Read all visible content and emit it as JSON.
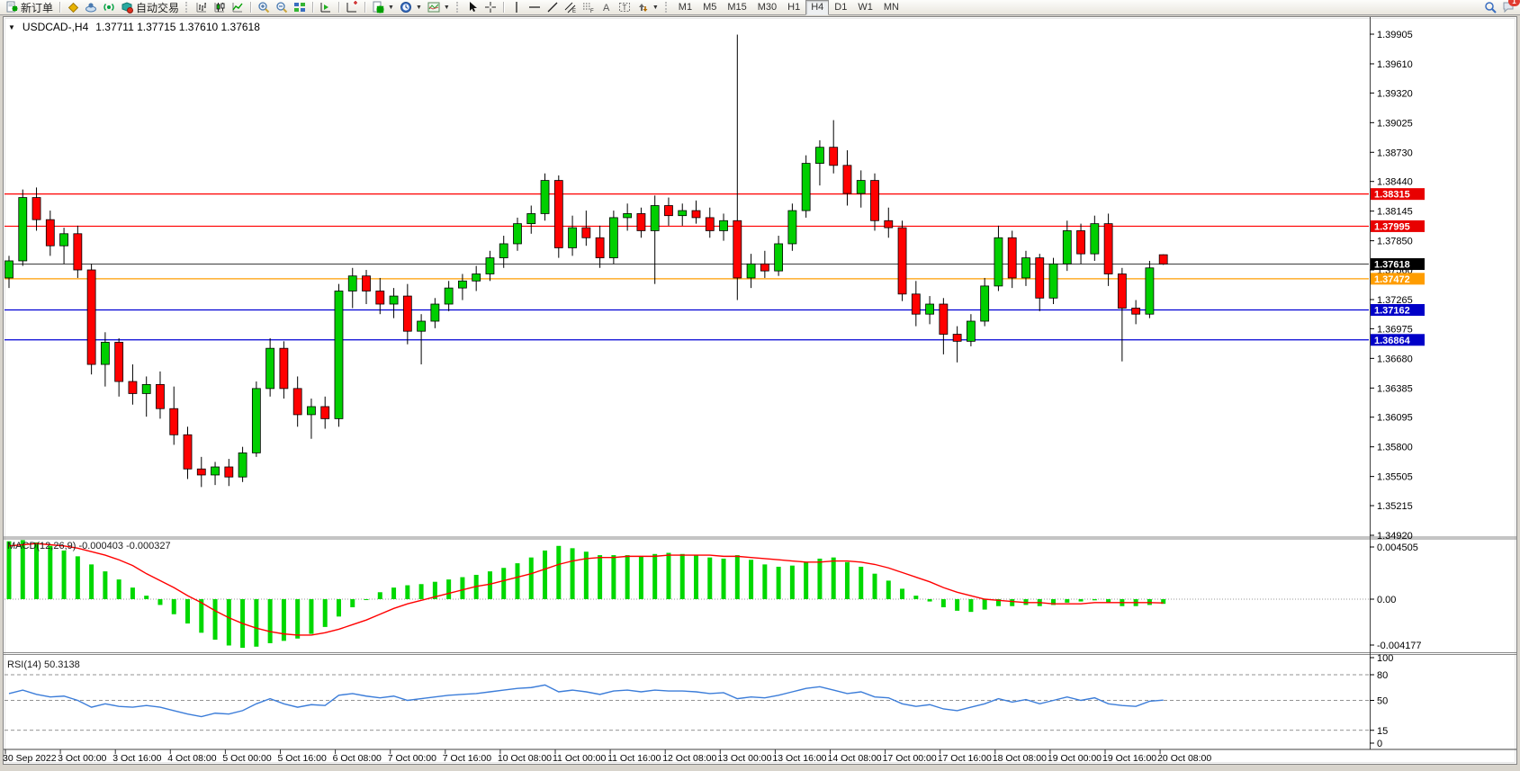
{
  "toolbar": {
    "new_order_label": "新订单",
    "autotrade_label": "自动交易",
    "timeframes": [
      "M1",
      "M5",
      "M15",
      "M30",
      "H1",
      "H4",
      "D1",
      "W1",
      "MN"
    ],
    "active_timeframe": "H4",
    "badge_count": "1",
    "icons": [
      "new-order-icon",
      "diamond-icon",
      "cloud-icon",
      "signal-icon",
      "autotrade-icon",
      "bars-chart-icon",
      "candlestick-chart-icon",
      "line-chart-icon",
      "zoom-in-icon",
      "zoom-out-icon",
      "tile-windows-icon",
      "tester-icon",
      "new-chart-icon",
      "indicators-icon",
      "clock-icon",
      "template-icon",
      "cursor-icon",
      "crosshair-icon",
      "vline-icon",
      "hline-icon",
      "trendline-icon",
      "channel-icon",
      "fibonacci-icon",
      "text-icon",
      "label-icon",
      "arrows-icon",
      "search-icon",
      "chat-icon"
    ]
  },
  "chart": {
    "title": "USDCAD-,H4",
    "quote": "1.37711 1.37715 1.37610 1.37618"
  },
  "chart_data": {
    "type": "candlestick",
    "symbol": "USDCAD",
    "timeframe": "H4",
    "price_axis": {
      "max": 1.39905,
      "min": 1.3492,
      "ticks": [
        "1.39905",
        "1.39610",
        "1.39320",
        "1.39025",
        "1.38730",
        "1.38440",
        "1.38145",
        "1.37850",
        "1.37560",
        "1.37265",
        "1.36975",
        "1.36680",
        "1.36385",
        "1.36095",
        "1.35800",
        "1.35505",
        "1.35215",
        "1.34920"
      ]
    },
    "hlines": [
      {
        "label": "1.38315",
        "price": 1.38315,
        "color": "red"
      },
      {
        "label": "1.37995",
        "price": 1.37995,
        "color": "red"
      },
      {
        "label": "1.37618",
        "price": 1.37618,
        "color": "black"
      },
      {
        "label": "1.37472",
        "price": 1.37472,
        "color": "orange"
      },
      {
        "label": "1.37162",
        "price": 1.37162,
        "color": "blue"
      },
      {
        "label": "1.36864",
        "price": 1.36864,
        "color": "blue"
      }
    ],
    "x_labels": [
      "30 Sep 2022",
      "3 Oct 00:00",
      "3 Oct 16:00",
      "4 Oct 08:00",
      "5 Oct 00:00",
      "5 Oct 16:00",
      "6 Oct 08:00",
      "7 Oct 00:00",
      "7 Oct 16:00",
      "10 Oct 08:00",
      "11 Oct 00:00",
      "11 Oct 16:00",
      "12 Oct 08:00",
      "13 Oct 00:00",
      "13 Oct 16:00",
      "14 Oct 08:00",
      "17 Oct 00:00",
      "17 Oct 16:00",
      "18 Oct 08:00",
      "19 Oct 00:00",
      "19 Oct 16:00",
      "20 Oct 08:00"
    ],
    "candles": [
      [
        1.3748,
        1.377,
        1.3738,
        1.3765
      ],
      [
        1.3765,
        1.3836,
        1.376,
        1.3828
      ],
      [
        1.3828,
        1.3838,
        1.3795,
        1.3806
      ],
      [
        1.3806,
        1.3815,
        1.377,
        1.378
      ],
      [
        1.378,
        1.3798,
        1.3762,
        1.3792
      ],
      [
        1.3792,
        1.38,
        1.3748,
        1.3756
      ],
      [
        1.3756,
        1.3762,
        1.3652,
        1.3662
      ],
      [
        1.3662,
        1.3694,
        1.364,
        1.3684
      ],
      [
        1.3684,
        1.3688,
        1.363,
        1.3645
      ],
      [
        1.3645,
        1.3662,
        1.3622,
        1.3633
      ],
      [
        1.3633,
        1.365,
        1.361,
        1.3642
      ],
      [
        1.3642,
        1.3655,
        1.3608,
        1.3618
      ],
      [
        1.3618,
        1.364,
        1.3582,
        1.3592
      ],
      [
        1.3592,
        1.36,
        1.3548,
        1.3558
      ],
      [
        1.3558,
        1.357,
        1.354,
        1.3552
      ],
      [
        1.3552,
        1.3565,
        1.3542,
        1.356
      ],
      [
        1.356,
        1.3568,
        1.3541,
        1.355
      ],
      [
        1.355,
        1.358,
        1.3545,
        1.3574
      ],
      [
        1.3574,
        1.3645,
        1.357,
        1.3638
      ],
      [
        1.3638,
        1.3688,
        1.363,
        1.3678
      ],
      [
        1.3678,
        1.3685,
        1.3628,
        1.3638
      ],
      [
        1.3638,
        1.365,
        1.36,
        1.3612
      ],
      [
        1.3612,
        1.3628,
        1.3588,
        1.362
      ],
      [
        1.362,
        1.363,
        1.3598,
        1.3608
      ],
      [
        1.3608,
        1.3742,
        1.36,
        1.3735
      ],
      [
        1.3735,
        1.3758,
        1.3718,
        1.375
      ],
      [
        1.375,
        1.3756,
        1.3722,
        1.3735
      ],
      [
        1.3735,
        1.3748,
        1.3712,
        1.3722
      ],
      [
        1.3722,
        1.3738,
        1.3708,
        1.373
      ],
      [
        1.373,
        1.3742,
        1.3682,
        1.3695
      ],
      [
        1.3695,
        1.3712,
        1.3662,
        1.3705
      ],
      [
        1.3705,
        1.3728,
        1.3698,
        1.3722
      ],
      [
        1.3722,
        1.3745,
        1.3715,
        1.3738
      ],
      [
        1.3738,
        1.3752,
        1.3726,
        1.3745
      ],
      [
        1.3745,
        1.376,
        1.3735,
        1.3752
      ],
      [
        1.3752,
        1.3775,
        1.3745,
        1.3768
      ],
      [
        1.3768,
        1.379,
        1.3758,
        1.3782
      ],
      [
        1.3782,
        1.3808,
        1.3775,
        1.3802
      ],
      [
        1.3802,
        1.382,
        1.3792,
        1.3812
      ],
      [
        1.3812,
        1.3852,
        1.3805,
        1.3845
      ],
      [
        1.3845,
        1.385,
        1.3768,
        1.3778
      ],
      [
        1.3778,
        1.381,
        1.377,
        1.3798
      ],
      [
        1.3798,
        1.3815,
        1.378,
        1.3788
      ],
      [
        1.3788,
        1.38,
        1.3758,
        1.3768
      ],
      [
        1.3768,
        1.3815,
        1.3762,
        1.3808
      ],
      [
        1.3808,
        1.3822,
        1.3795,
        1.3812
      ],
      [
        1.3812,
        1.3818,
        1.3788,
        1.3795
      ],
      [
        1.3795,
        1.383,
        1.3742,
        1.382
      ],
      [
        1.382,
        1.3828,
        1.38,
        1.381
      ],
      [
        1.381,
        1.3822,
        1.38,
        1.3815
      ],
      [
        1.3815,
        1.3825,
        1.3802,
        1.3808
      ],
      [
        1.3808,
        1.3818,
        1.3788,
        1.3795
      ],
      [
        1.3795,
        1.3812,
        1.3785,
        1.3805
      ],
      [
        1.3805,
        1.399,
        1.3726,
        1.3748
      ],
      [
        1.3748,
        1.3772,
        1.3738,
        1.3762
      ],
      [
        1.3762,
        1.3775,
        1.3748,
        1.3755
      ],
      [
        1.3755,
        1.379,
        1.375,
        1.3782
      ],
      [
        1.3782,
        1.3822,
        1.3775,
        1.3815
      ],
      [
        1.3815,
        1.387,
        1.3808,
        1.3862
      ],
      [
        1.3862,
        1.3885,
        1.384,
        1.3878
      ],
      [
        1.3878,
        1.3905,
        1.3852,
        1.386
      ],
      [
        1.386,
        1.3875,
        1.382,
        1.3832
      ],
      [
        1.3832,
        1.3855,
        1.3818,
        1.3845
      ],
      [
        1.3845,
        1.3852,
        1.3795,
        1.3805
      ],
      [
        1.3805,
        1.3818,
        1.3788,
        1.3798
      ],
      [
        1.3798,
        1.3805,
        1.3725,
        1.3732
      ],
      [
        1.3732,
        1.3745,
        1.37,
        1.3712
      ],
      [
        1.3712,
        1.373,
        1.3702,
        1.3722
      ],
      [
        1.3722,
        1.3728,
        1.3672,
        1.3692
      ],
      [
        1.3692,
        1.37,
        1.3664,
        1.3685
      ],
      [
        1.3685,
        1.3712,
        1.368,
        1.3705
      ],
      [
        1.3705,
        1.3748,
        1.37,
        1.374
      ],
      [
        1.374,
        1.38,
        1.3735,
        1.3788
      ],
      [
        1.3788,
        1.3795,
        1.3738,
        1.3748
      ],
      [
        1.3748,
        1.3775,
        1.374,
        1.3768
      ],
      [
        1.3768,
        1.3772,
        1.3715,
        1.3728
      ],
      [
        1.3728,
        1.3768,
        1.3722,
        1.3762
      ],
      [
        1.3762,
        1.3805,
        1.3755,
        1.3795
      ],
      [
        1.3795,
        1.3802,
        1.3762,
        1.3772
      ],
      [
        1.3772,
        1.381,
        1.3765,
        1.3802
      ],
      [
        1.3802,
        1.3812,
        1.374,
        1.3752
      ],
      [
        1.3752,
        1.3758,
        1.3665,
        1.3718
      ],
      [
        1.3718,
        1.3726,
        1.3702,
        1.3712
      ],
      [
        1.3712,
        1.3765,
        1.3708,
        1.3758
      ],
      [
        1.37711,
        1.37715,
        1.3761,
        1.37618
      ]
    ],
    "macd": {
      "label": "MACD(12,26,9) -0.000403 -0.000327",
      "value_main": -0.000403,
      "value_signal": -0.000327,
      "scale": 0.0001,
      "axis_ticks": [
        "0.004505",
        "0.00",
        "-0.004177"
      ],
      "main": [
        50,
        51,
        49,
        46,
        42,
        37,
        30,
        24,
        17,
        10,
        3,
        -5,
        -13,
        -21,
        -29,
        -35,
        -40,
        -42,
        -41,
        -38,
        -36,
        -34,
        -30,
        -24,
        -15,
        -7,
        0,
        6,
        10,
        12,
        13,
        15,
        17,
        19,
        21,
        24,
        27,
        31,
        36,
        42,
        46,
        44,
        41,
        38,
        38,
        38,
        37,
        39,
        40,
        39,
        38,
        36,
        35,
        38,
        34,
        30,
        28,
        29,
        32,
        35,
        36,
        32,
        28,
        22,
        16,
        9,
        3,
        -2,
        -7,
        -10,
        -11,
        -9,
        -6,
        -6,
        -5,
        -6,
        -5,
        -3,
        -2,
        -1,
        -3,
        -6,
        -6,
        -5,
        -4.03
      ],
      "signal": [
        46,
        47,
        48,
        47,
        46,
        44,
        41,
        38,
        34,
        29,
        22,
        16,
        10,
        3,
        -3,
        -10,
        -16,
        -21,
        -25,
        -28,
        -30,
        -31,
        -31,
        -29,
        -26,
        -22,
        -18,
        -13,
        -8,
        -4,
        -1,
        2,
        5,
        8,
        11,
        13,
        16,
        19,
        22,
        26,
        30,
        33,
        35,
        36,
        36,
        37,
        37,
        37,
        38,
        38,
        38,
        38,
        37,
        37,
        36,
        35,
        34,
        33,
        32,
        32,
        33,
        33,
        32,
        30,
        27,
        23,
        19,
        15,
        10,
        6,
        3,
        0,
        -1,
        -2,
        -3,
        -3,
        -4,
        -4,
        -4,
        -3,
        -3,
        -3,
        -3,
        -3,
        -3.27
      ]
    },
    "rsi": {
      "label": "RSI(14) 50.3138",
      "value": 50.3138,
      "levels": [
        80,
        50,
        15
      ],
      "axis_ticks": [
        "100",
        "80",
        "50",
        "15",
        "0"
      ],
      "values": [
        58,
        62,
        57,
        54,
        55,
        50,
        42,
        46,
        43,
        42,
        44,
        42,
        38,
        34,
        31,
        35,
        34,
        38,
        46,
        52,
        46,
        42,
        45,
        44,
        56,
        58,
        55,
        53,
        55,
        50,
        52,
        54,
        56,
        57,
        58,
        60,
        62,
        64,
        65,
        68,
        60,
        62,
        60,
        57,
        61,
        62,
        60,
        62,
        61,
        61,
        60,
        58,
        59,
        52,
        54,
        53,
        56,
        60,
        64,
        66,
        62,
        58,
        60,
        54,
        53,
        46,
        43,
        45,
        40,
        38,
        42,
        46,
        52,
        48,
        51,
        46,
        50,
        54,
        50,
        53,
        46,
        44,
        43,
        49,
        50.3
      ]
    },
    "colors": {
      "bull": "#00CF00",
      "bear": "#FF0000",
      "wick": "#000000",
      "macd_hist": "#00D800",
      "macd_signal": "#FF0000",
      "rsi_line": "#3C7DD9",
      "red": "#FF0000",
      "blue": "#0000D4",
      "orange": "#FF9D00",
      "black": "#3C3C3C"
    }
  }
}
